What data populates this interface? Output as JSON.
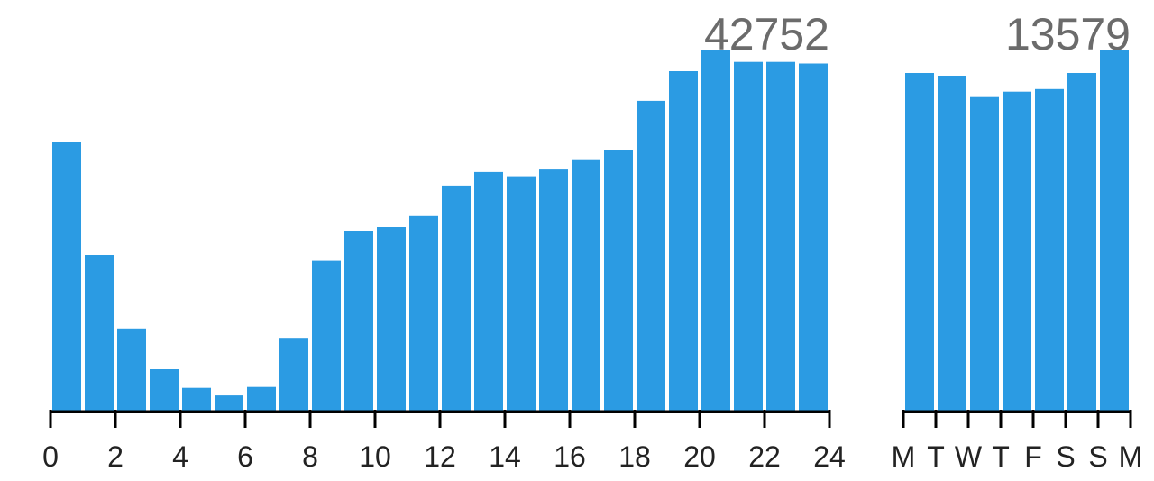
{
  "colors": {
    "bar": "#2b9be3",
    "axis": "#000000",
    "max_label": "#6b6b6b"
  },
  "chart_data": [
    {
      "type": "bar",
      "title": "",
      "max_label": "42752",
      "x": [
        0,
        1,
        2,
        3,
        4,
        5,
        6,
        7,
        8,
        9,
        10,
        11,
        12,
        13,
        14,
        15,
        16,
        17,
        18,
        19,
        20,
        21,
        22,
        23
      ],
      "xlim": [
        0,
        24
      ],
      "tick_labels": [
        "0",
        "2",
        "4",
        "6",
        "8",
        "10",
        "12",
        "14",
        "16",
        "18",
        "20",
        "22",
        "24"
      ],
      "values": [
        31800,
        18500,
        9800,
        5000,
        2800,
        1900,
        2900,
        8700,
        17800,
        21300,
        21800,
        23100,
        26700,
        28300,
        27800,
        28600,
        29700,
        30900,
        36700,
        40200,
        42752,
        41300,
        41300,
        41100
      ],
      "ylim": [
        0,
        42752
      ]
    },
    {
      "type": "bar",
      "title": "",
      "max_label": "13579",
      "categories": [
        "M",
        "T",
        "W",
        "T",
        "F",
        "S",
        "S"
      ],
      "tick_labels": [
        "M",
        "T",
        "W",
        "T",
        "F",
        "S",
        "S",
        "M"
      ],
      "values": [
        12700,
        12600,
        11800,
        12000,
        12100,
        12700,
        13579
      ],
      "ylim": [
        0,
        13579
      ]
    }
  ]
}
